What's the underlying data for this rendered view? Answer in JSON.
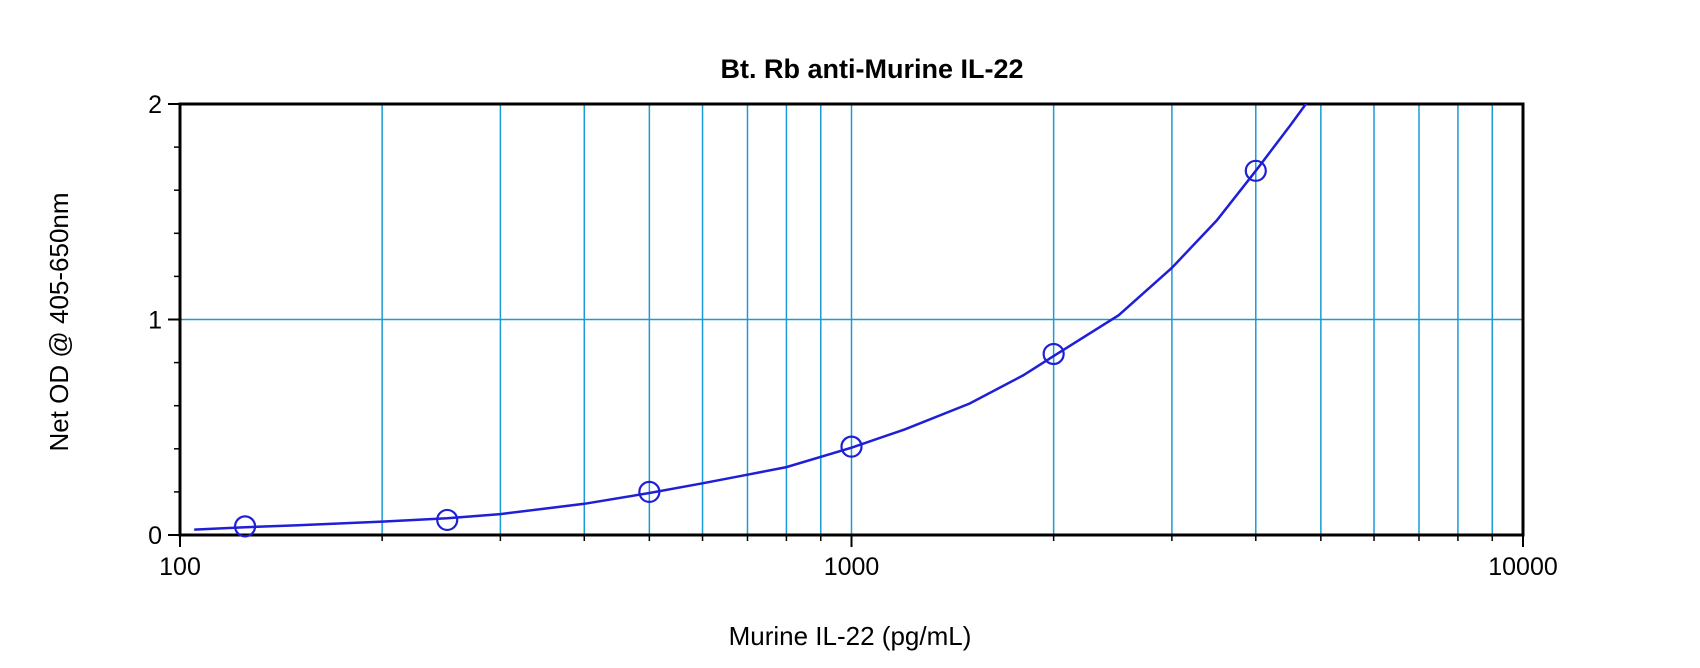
{
  "chart_data": {
    "type": "scatter",
    "title": "Bt. Rb anti-Murine IL-22",
    "xlabel": "Murine IL-22 (pg/mL)",
    "ylabel": "Net OD @ 405-650nm",
    "x_scale": "log",
    "xlim": [
      100,
      10000
    ],
    "ylim": [
      0,
      2
    ],
    "x_ticks": [
      100,
      1000,
      10000
    ],
    "x_tick_labels": [
      "100",
      "1000",
      "10000"
    ],
    "y_ticks": [
      0,
      1,
      2
    ],
    "y_tick_labels": [
      "0",
      "1",
      "2"
    ],
    "grid": true,
    "series": [
      {
        "type": "scatter",
        "x": [
          125,
          250,
          500,
          1000,
          2000,
          4000
        ],
        "y": [
          0.04,
          0.07,
          0.2,
          0.41,
          0.84,
          1.69
        ]
      },
      {
        "type": "line",
        "x": [
          105,
          125,
          150,
          200,
          250,
          300,
          400,
          500,
          600,
          700,
          800,
          1000,
          1200,
          1500,
          1800,
          2000,
          2500,
          3000,
          3500,
          4000,
          4500,
          4800
        ],
        "y": [
          0.025,
          0.036,
          0.045,
          0.062,
          0.078,
          0.097,
          0.145,
          0.195,
          0.24,
          0.28,
          0.315,
          0.405,
          0.49,
          0.61,
          0.74,
          0.83,
          1.02,
          1.24,
          1.46,
          1.69,
          1.9,
          2.02
        ]
      }
    ],
    "colors": {
      "data": "#1f1fd6",
      "grid": "#1a9ad6",
      "frame": "#000000"
    }
  }
}
